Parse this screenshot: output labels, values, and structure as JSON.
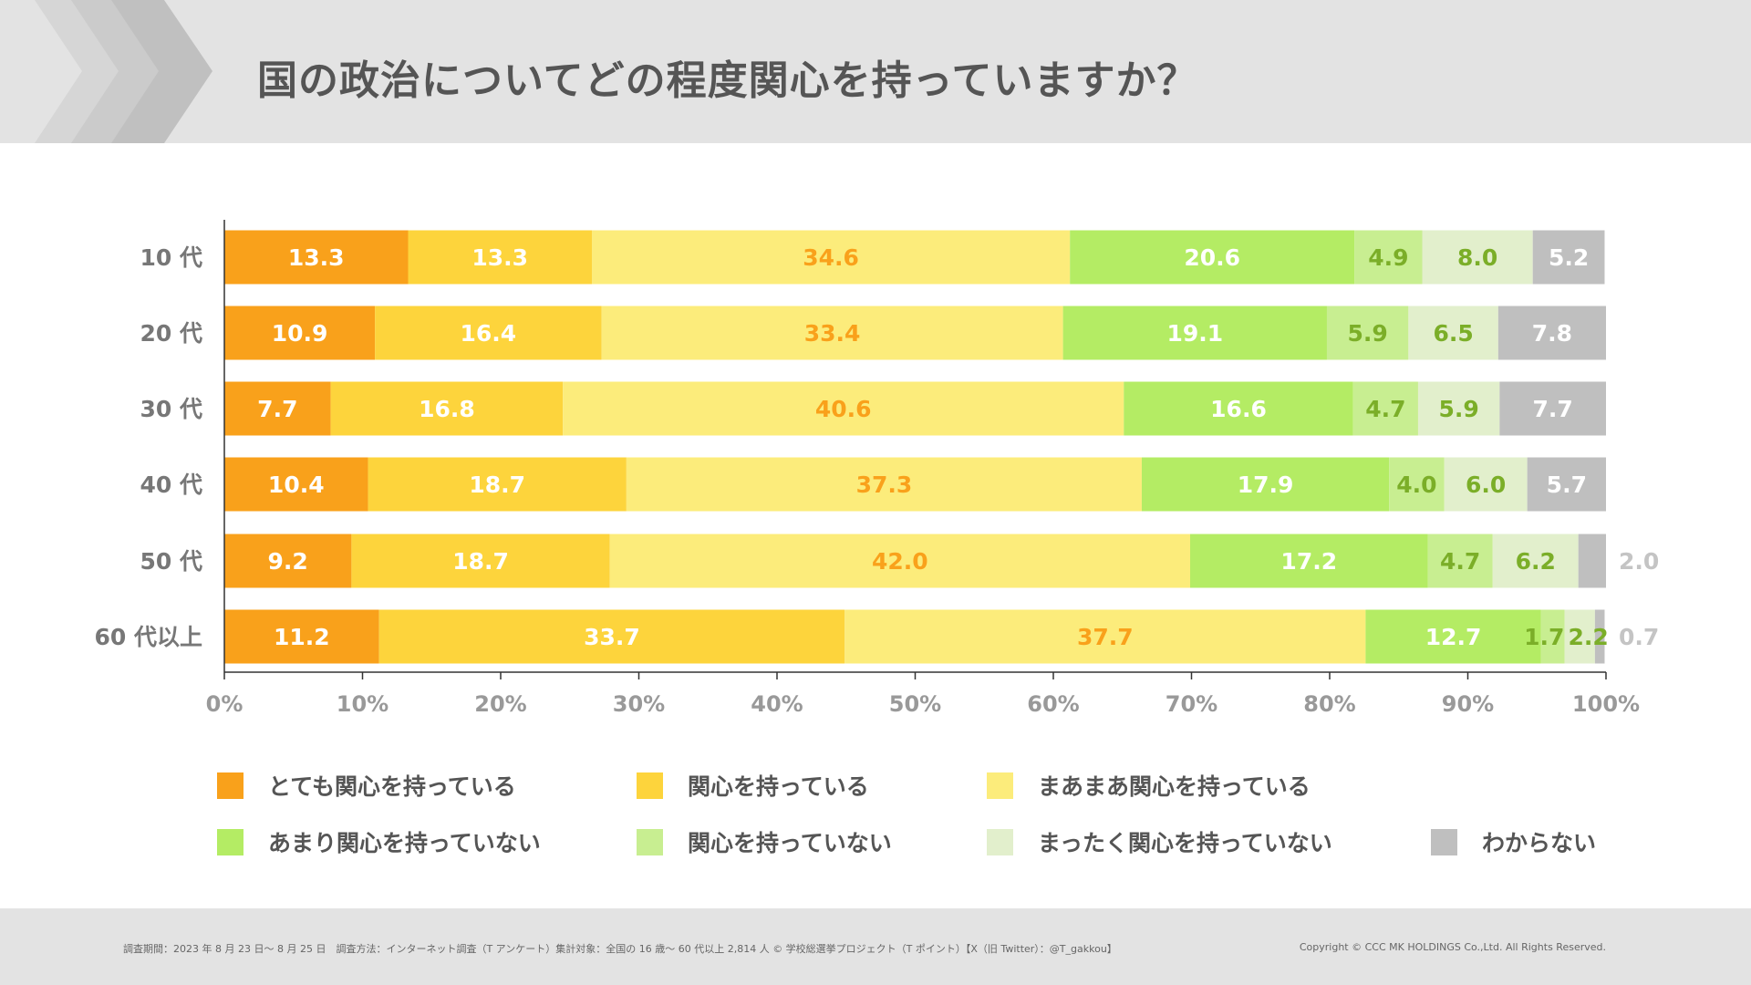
{
  "title": "国の政治についてどの程度関心を持っていますか？",
  "footer": {
    "note": "調査期間：2023 年 8 月 23 日～ 8 月 25 日　調査方法：インターネット調査（T アンケート）集計対象：全国の 16 歳～ 60 代以上 2,814 人 © 学校総選挙プロジェクト（T ポイント）【X（旧 Twitter）：@T_gakkou】",
    "copyright": "Copyright © CCC MK HOLDINGS Co.,Ltd. All Rights Reserved."
  },
  "chart_data": {
    "type": "bar",
    "orientation": "horizontal-stacked-100",
    "categories": [
      "10 代",
      "20 代",
      "30 代",
      "40 代",
      "50 代",
      "60 代以上"
    ],
    "xlim": [
      0,
      100
    ],
    "xticks": [
      "0%",
      "10%",
      "20%",
      "30%",
      "40%",
      "50%",
      "60%",
      "70%",
      "80%",
      "90%",
      "100%"
    ],
    "legend_position": "bottom",
    "series": [
      {
        "name": "とても関心を持っている",
        "color": "#F9A11B",
        "label_color": "#ffffff",
        "values": [
          13.3,
          10.9,
          7.7,
          10.4,
          9.2,
          11.2
        ]
      },
      {
        "name": "関心を持っている",
        "color": "#FDD43C",
        "label_color": "#ffffff",
        "values": [
          13.3,
          16.4,
          16.8,
          18.7,
          18.7,
          33.7
        ]
      },
      {
        "name": "まあまあ関心を持っている",
        "color": "#FCEC7B",
        "label_color": "#F9A11B",
        "values": [
          34.6,
          33.4,
          40.6,
          37.3,
          42.0,
          37.7
        ]
      },
      {
        "name": "あまり関心を持っていない",
        "color": "#B4EC64",
        "label_color": "#ffffff",
        "values": [
          20.6,
          19.1,
          16.6,
          17.9,
          17.2,
          12.7
        ]
      },
      {
        "name": "関心を持っていない",
        "color": "#C8EE91",
        "label_color": "#7BAE28",
        "values": [
          4.9,
          5.9,
          4.7,
          4.0,
          4.7,
          1.7
        ]
      },
      {
        "name": "まったく関心を持っていない",
        "color": "#E2EFCC",
        "label_color": "#7BAE28",
        "values": [
          8.0,
          6.5,
          5.9,
          6.0,
          6.2,
          2.2
        ]
      },
      {
        "name": "わからない",
        "color": "#BFBFBF",
        "label_color": "#ffffff",
        "values": [
          5.2,
          7.8,
          7.7,
          5.7,
          2.0,
          0.7
        ]
      }
    ]
  }
}
